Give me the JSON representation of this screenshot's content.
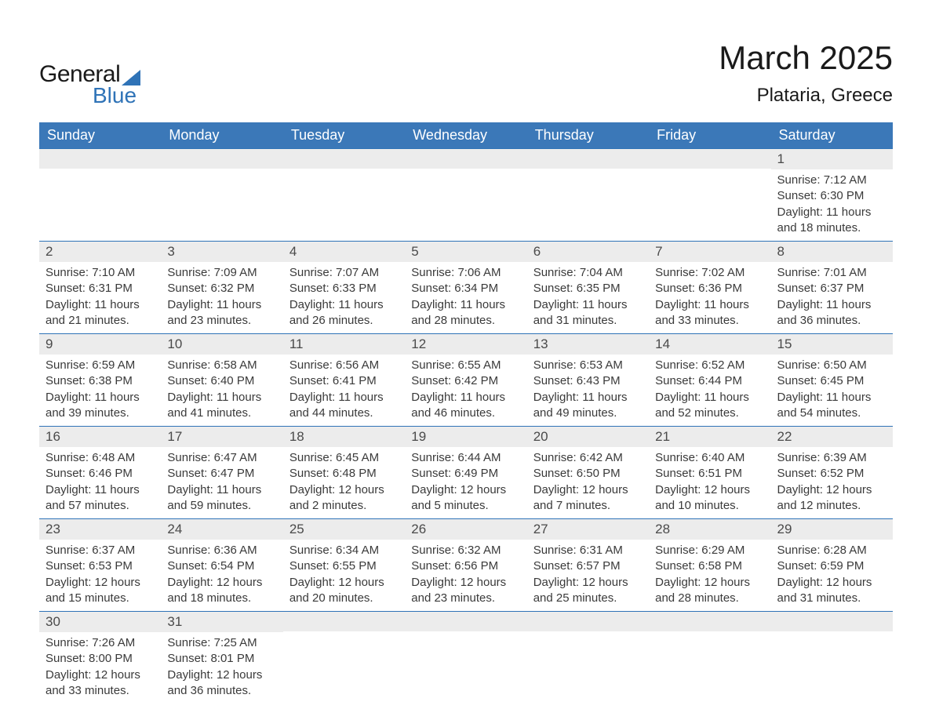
{
  "logo": {
    "general": "General",
    "blue": "Blue"
  },
  "title": "March 2025",
  "location": "Plataria, Greece",
  "colors": {
    "header_bg": "#3b78b8",
    "header_text": "#ffffff",
    "row_border": "#2f73b7",
    "daynum_bg": "#ececec",
    "body_text": "#3a3a3a",
    "logo_blue": "#2f73b7"
  },
  "weekdays": [
    "Sunday",
    "Monday",
    "Tuesday",
    "Wednesday",
    "Thursday",
    "Friday",
    "Saturday"
  ],
  "weeks": [
    [
      {
        "blank": true
      },
      {
        "blank": true
      },
      {
        "blank": true
      },
      {
        "blank": true
      },
      {
        "blank": true
      },
      {
        "blank": true
      },
      {
        "day": "1",
        "sunrise": "Sunrise: 7:12 AM",
        "sunset": "Sunset: 6:30 PM",
        "daylight1": "Daylight: 11 hours",
        "daylight2": "and 18 minutes."
      }
    ],
    [
      {
        "day": "2",
        "sunrise": "Sunrise: 7:10 AM",
        "sunset": "Sunset: 6:31 PM",
        "daylight1": "Daylight: 11 hours",
        "daylight2": "and 21 minutes."
      },
      {
        "day": "3",
        "sunrise": "Sunrise: 7:09 AM",
        "sunset": "Sunset: 6:32 PM",
        "daylight1": "Daylight: 11 hours",
        "daylight2": "and 23 minutes."
      },
      {
        "day": "4",
        "sunrise": "Sunrise: 7:07 AM",
        "sunset": "Sunset: 6:33 PM",
        "daylight1": "Daylight: 11 hours",
        "daylight2": "and 26 minutes."
      },
      {
        "day": "5",
        "sunrise": "Sunrise: 7:06 AM",
        "sunset": "Sunset: 6:34 PM",
        "daylight1": "Daylight: 11 hours",
        "daylight2": "and 28 minutes."
      },
      {
        "day": "6",
        "sunrise": "Sunrise: 7:04 AM",
        "sunset": "Sunset: 6:35 PM",
        "daylight1": "Daylight: 11 hours",
        "daylight2": "and 31 minutes."
      },
      {
        "day": "7",
        "sunrise": "Sunrise: 7:02 AM",
        "sunset": "Sunset: 6:36 PM",
        "daylight1": "Daylight: 11 hours",
        "daylight2": "and 33 minutes."
      },
      {
        "day": "8",
        "sunrise": "Sunrise: 7:01 AM",
        "sunset": "Sunset: 6:37 PM",
        "daylight1": "Daylight: 11 hours",
        "daylight2": "and 36 minutes."
      }
    ],
    [
      {
        "day": "9",
        "sunrise": "Sunrise: 6:59 AM",
        "sunset": "Sunset: 6:38 PM",
        "daylight1": "Daylight: 11 hours",
        "daylight2": "and 39 minutes."
      },
      {
        "day": "10",
        "sunrise": "Sunrise: 6:58 AM",
        "sunset": "Sunset: 6:40 PM",
        "daylight1": "Daylight: 11 hours",
        "daylight2": "and 41 minutes."
      },
      {
        "day": "11",
        "sunrise": "Sunrise: 6:56 AM",
        "sunset": "Sunset: 6:41 PM",
        "daylight1": "Daylight: 11 hours",
        "daylight2": "and 44 minutes."
      },
      {
        "day": "12",
        "sunrise": "Sunrise: 6:55 AM",
        "sunset": "Sunset: 6:42 PM",
        "daylight1": "Daylight: 11 hours",
        "daylight2": "and 46 minutes."
      },
      {
        "day": "13",
        "sunrise": "Sunrise: 6:53 AM",
        "sunset": "Sunset: 6:43 PM",
        "daylight1": "Daylight: 11 hours",
        "daylight2": "and 49 minutes."
      },
      {
        "day": "14",
        "sunrise": "Sunrise: 6:52 AM",
        "sunset": "Sunset: 6:44 PM",
        "daylight1": "Daylight: 11 hours",
        "daylight2": "and 52 minutes."
      },
      {
        "day": "15",
        "sunrise": "Sunrise: 6:50 AM",
        "sunset": "Sunset: 6:45 PM",
        "daylight1": "Daylight: 11 hours",
        "daylight2": "and 54 minutes."
      }
    ],
    [
      {
        "day": "16",
        "sunrise": "Sunrise: 6:48 AM",
        "sunset": "Sunset: 6:46 PM",
        "daylight1": "Daylight: 11 hours",
        "daylight2": "and 57 minutes."
      },
      {
        "day": "17",
        "sunrise": "Sunrise: 6:47 AM",
        "sunset": "Sunset: 6:47 PM",
        "daylight1": "Daylight: 11 hours",
        "daylight2": "and 59 minutes."
      },
      {
        "day": "18",
        "sunrise": "Sunrise: 6:45 AM",
        "sunset": "Sunset: 6:48 PM",
        "daylight1": "Daylight: 12 hours",
        "daylight2": "and 2 minutes."
      },
      {
        "day": "19",
        "sunrise": "Sunrise: 6:44 AM",
        "sunset": "Sunset: 6:49 PM",
        "daylight1": "Daylight: 12 hours",
        "daylight2": "and 5 minutes."
      },
      {
        "day": "20",
        "sunrise": "Sunrise: 6:42 AM",
        "sunset": "Sunset: 6:50 PM",
        "daylight1": "Daylight: 12 hours",
        "daylight2": "and 7 minutes."
      },
      {
        "day": "21",
        "sunrise": "Sunrise: 6:40 AM",
        "sunset": "Sunset: 6:51 PM",
        "daylight1": "Daylight: 12 hours",
        "daylight2": "and 10 minutes."
      },
      {
        "day": "22",
        "sunrise": "Sunrise: 6:39 AM",
        "sunset": "Sunset: 6:52 PM",
        "daylight1": "Daylight: 12 hours",
        "daylight2": "and 12 minutes."
      }
    ],
    [
      {
        "day": "23",
        "sunrise": "Sunrise: 6:37 AM",
        "sunset": "Sunset: 6:53 PM",
        "daylight1": "Daylight: 12 hours",
        "daylight2": "and 15 minutes."
      },
      {
        "day": "24",
        "sunrise": "Sunrise: 6:36 AM",
        "sunset": "Sunset: 6:54 PM",
        "daylight1": "Daylight: 12 hours",
        "daylight2": "and 18 minutes."
      },
      {
        "day": "25",
        "sunrise": "Sunrise: 6:34 AM",
        "sunset": "Sunset: 6:55 PM",
        "daylight1": "Daylight: 12 hours",
        "daylight2": "and 20 minutes."
      },
      {
        "day": "26",
        "sunrise": "Sunrise: 6:32 AM",
        "sunset": "Sunset: 6:56 PM",
        "daylight1": "Daylight: 12 hours",
        "daylight2": "and 23 minutes."
      },
      {
        "day": "27",
        "sunrise": "Sunrise: 6:31 AM",
        "sunset": "Sunset: 6:57 PM",
        "daylight1": "Daylight: 12 hours",
        "daylight2": "and 25 minutes."
      },
      {
        "day": "28",
        "sunrise": "Sunrise: 6:29 AM",
        "sunset": "Sunset: 6:58 PM",
        "daylight1": "Daylight: 12 hours",
        "daylight2": "and 28 minutes."
      },
      {
        "day": "29",
        "sunrise": "Sunrise: 6:28 AM",
        "sunset": "Sunset: 6:59 PM",
        "daylight1": "Daylight: 12 hours",
        "daylight2": "and 31 minutes."
      }
    ],
    [
      {
        "day": "30",
        "sunrise": "Sunrise: 7:26 AM",
        "sunset": "Sunset: 8:00 PM",
        "daylight1": "Daylight: 12 hours",
        "daylight2": "and 33 minutes."
      },
      {
        "day": "31",
        "sunrise": "Sunrise: 7:25 AM",
        "sunset": "Sunset: 8:01 PM",
        "daylight1": "Daylight: 12 hours",
        "daylight2": "and 36 minutes."
      },
      {
        "blank": true
      },
      {
        "blank": true
      },
      {
        "blank": true
      },
      {
        "blank": true
      },
      {
        "blank": true
      }
    ]
  ]
}
